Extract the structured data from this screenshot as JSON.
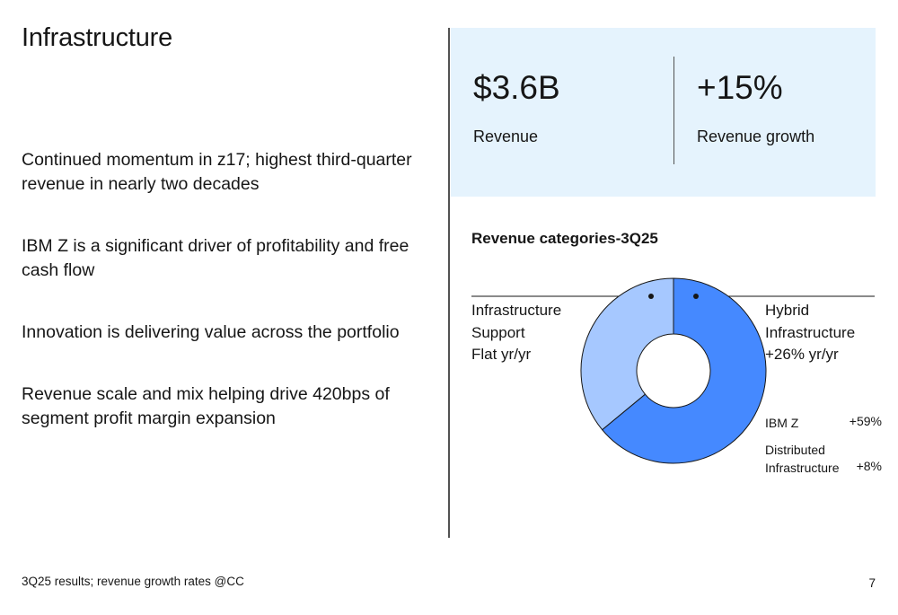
{
  "title": "Infrastructure",
  "bullets": [
    "Continued momentum in z17; highest third-quarter revenue in nearly two decades",
    "IBM Z is a significant driver of profitability and free cash flow",
    "Innovation is delivering value across the portfolio",
    "Revenue scale and mix helping drive 420bps of segment profit margin expansion"
  ],
  "kpis": [
    {
      "value": "$3.6B",
      "label": "Revenue"
    },
    {
      "value": "+15%",
      "label": "Revenue growth"
    }
  ],
  "chart_title": "Revenue categories-3Q25",
  "categories": {
    "support": {
      "line1": "Infrastructure",
      "line2": "Support",
      "line3": "Flat yr/yr"
    },
    "hybrid": {
      "line1": "Hybrid",
      "line2": "Infrastructure",
      "line3": "+26% yr/yr"
    }
  },
  "sub_items": [
    {
      "label1": "IBM Z",
      "label2": "",
      "value": "+59%"
    },
    {
      "label1": "Distributed",
      "label2": "Infrastructure",
      "value": "+8%"
    }
  ],
  "chart_data": {
    "type": "pie",
    "title": "Revenue categories-3Q25",
    "slices": [
      {
        "name": "Hybrid Infrastructure",
        "share": 0.64,
        "growth": "+26% yr/yr"
      },
      {
        "name": "Infrastructure Support",
        "share": 0.36,
        "growth": "Flat yr/yr"
      }
    ],
    "colors": {
      "hybrid": "#4589ff",
      "support": "#a6c8ff",
      "stroke": "#161616"
    }
  },
  "footer": "3Q25 results; revenue growth rates @CC",
  "page_number": "7"
}
